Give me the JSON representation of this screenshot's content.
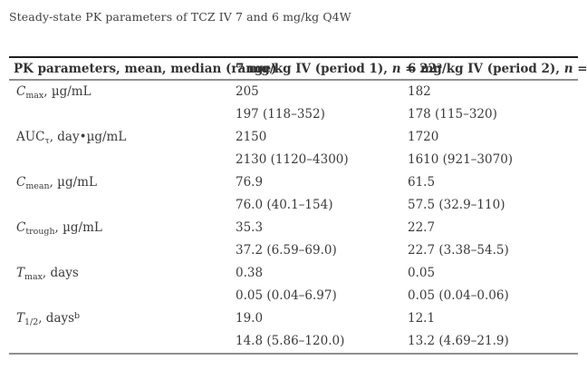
{
  "page": {
    "title": "Steady-state PK parameters of TCZ IV 7 and 6 mg/kg Q4W"
  },
  "table": {
    "colors": {
      "text": "#3a3a3a",
      "rule_dark": "#1f1f1f",
      "rule_gray": "#8f8f8f"
    },
    "columns": {
      "param_header": "PK parameters, mean, median (range)",
      "col7": {
        "text": "7 mg/kg IV (period 1), ",
        "n": "n",
        "eq": " = 22",
        "sup": "a"
      },
      "col6": {
        "text": "6 mg/kg IV (period 2), ",
        "n": "n",
        "eq": " = 22",
        "sup": ""
      }
    },
    "rows": [
      {
        "label": {
          "symbol": "C",
          "sub": "max",
          "unit": ", µg/mL",
          "sup": ""
        },
        "d7": {
          "mean": "205",
          "median": "197 (118–352)"
        },
        "d6": {
          "mean": "182",
          "median": "178 (115–320)"
        }
      },
      {
        "label": {
          "symbol": "AUC",
          "sub": "τ",
          "unit": ", day•µg/mL",
          "sup": ""
        },
        "d7": {
          "mean": "2150",
          "median": "2130 (1120–4300)"
        },
        "d6": {
          "mean": "1720",
          "median": "1610 (921–3070)"
        }
      },
      {
        "label": {
          "symbol": "C",
          "sub": "mean",
          "unit": ", µg/mL",
          "sup": ""
        },
        "d7": {
          "mean": "76.9",
          "median": "76.0 (40.1–154)"
        },
        "d6": {
          "mean": "61.5",
          "median": "57.5 (32.9–110)"
        }
      },
      {
        "label": {
          "symbol": "C",
          "sub": "trough",
          "unit": ", µg/mL",
          "sup": ""
        },
        "d7": {
          "mean": "35.3",
          "median": "37.2 (6.59–69.0)"
        },
        "d6": {
          "mean": "22.7",
          "median": "22.7 (3.38–54.5)"
        }
      },
      {
        "label": {
          "symbol": "T",
          "sub": "max",
          "unit": ", days",
          "sup": ""
        },
        "d7": {
          "mean": "0.38",
          "median": "0.05 (0.04–6.97)"
        },
        "d6": {
          "mean": "0.05",
          "median": "0.05 (0.04–0.06)"
        }
      },
      {
        "label": {
          "symbol": "T",
          "sub": "1/2",
          "unit": ", days",
          "sup": "b"
        },
        "d7": {
          "mean": "19.0",
          "median": "14.8 (5.86–120.0)"
        },
        "d6": {
          "mean": "12.1",
          "median": "13.2 (4.69–21.9)"
        }
      }
    ]
  }
}
